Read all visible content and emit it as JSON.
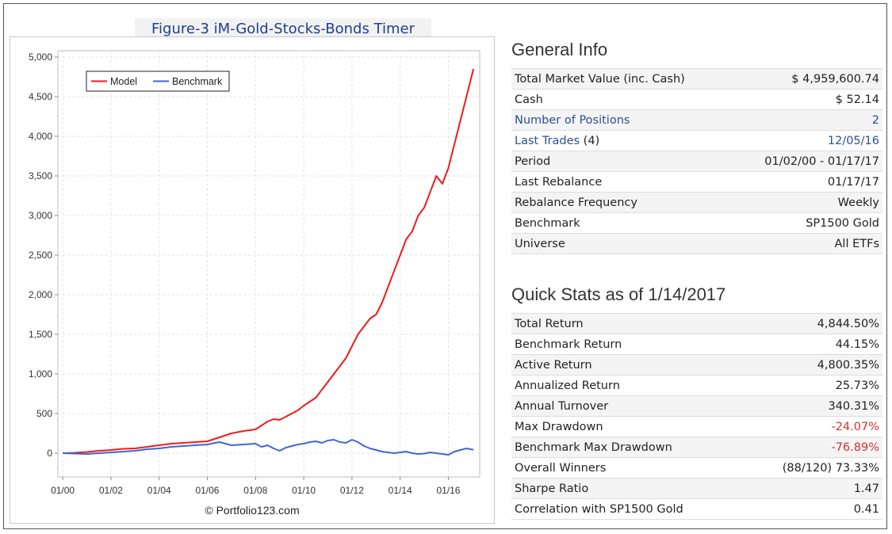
{
  "figure_title": "Figure-3 iM-Gold-Stocks-Bonds Timer",
  "credit": "© Portfolio123.com",
  "colors": {
    "model": "#ee1c1c",
    "benchmark": "#3f67d4",
    "link": "#2a4f96",
    "negative": "#d93030"
  },
  "chart_data": {
    "type": "line",
    "title": "Figure-3 iM-Gold-Stocks-Bonds Timer",
    "xlabel": "",
    "ylabel": "",
    "x_tick_labels": [
      "01/00",
      "01/02",
      "01/04",
      "01/06",
      "01/08",
      "01/10",
      "01/12",
      "01/14",
      "01/16"
    ],
    "x_tick_years": [
      2000,
      2002,
      2004,
      2006,
      2008,
      2010,
      2012,
      2014,
      2016
    ],
    "y_ticks": [
      0,
      500,
      1000,
      1500,
      2000,
      2500,
      3000,
      3500,
      4000,
      4500,
      5000
    ],
    "y_tick_labels": [
      "0",
      "500",
      "1,000",
      "1,500",
      "2,000",
      "2,500",
      "3,000",
      "3,500",
      "4,000",
      "4,500",
      "5,000"
    ],
    "xlim": [
      1999.8,
      2017.3
    ],
    "ylim": [
      -300,
      5080
    ],
    "grid": true,
    "legend_position": "top-left",
    "x": [
      2000.0,
      2000.5,
      2001.0,
      2001.5,
      2002.0,
      2002.5,
      2003.0,
      2003.5,
      2004.0,
      2004.5,
      2005.0,
      2005.5,
      2006.0,
      2006.5,
      2007.0,
      2007.5,
      2008.0,
      2008.25,
      2008.5,
      2008.75,
      2009.0,
      2009.25,
      2009.5,
      2009.75,
      2010.0,
      2010.25,
      2010.5,
      2010.75,
      2011.0,
      2011.25,
      2011.5,
      2011.75,
      2012.0,
      2012.25,
      2012.5,
      2012.75,
      2013.0,
      2013.25,
      2013.5,
      2013.75,
      2014.0,
      2014.25,
      2014.5,
      2014.75,
      2015.0,
      2015.25,
      2015.5,
      2015.75,
      2016.0,
      2016.25,
      2016.5,
      2016.75,
      2017.04
    ],
    "series": [
      {
        "name": "Model",
        "color": "#ee1c1c",
        "values": [
          0,
          5,
          15,
          30,
          40,
          55,
          60,
          80,
          100,
          120,
          130,
          140,
          150,
          200,
          250,
          280,
          300,
          350,
          400,
          430,
          420,
          460,
          500,
          540,
          600,
          650,
          700,
          800,
          900,
          1000,
          1100,
          1200,
          1350,
          1500,
          1600,
          1700,
          1750,
          1900,
          2100,
          2300,
          2500,
          2700,
          2800,
          3000,
          3100,
          3300,
          3500,
          3400,
          3600,
          3900,
          4200,
          4500,
          4850
        ]
      },
      {
        "name": "Benchmark",
        "color": "#3f67d4",
        "values": [
          0,
          -5,
          -10,
          0,
          10,
          20,
          30,
          50,
          60,
          80,
          90,
          100,
          110,
          140,
          100,
          110,
          120,
          80,
          100,
          60,
          30,
          70,
          90,
          110,
          120,
          140,
          150,
          130,
          160,
          170,
          140,
          130,
          170,
          140,
          90,
          60,
          40,
          20,
          10,
          0,
          10,
          20,
          0,
          -10,
          -5,
          10,
          0,
          -10,
          -20,
          20,
          40,
          60,
          44
        ]
      }
    ]
  },
  "general_info": {
    "heading": "General Info",
    "rows": [
      {
        "label": "Total Market Value (inc. Cash)",
        "value": "$ 4,959,600.74"
      },
      {
        "label": "Cash",
        "value": "$ 52.14"
      },
      {
        "label": "Number of Positions",
        "value": "2"
      },
      {
        "label": "Last Trades",
        "label_suffix": " (4)",
        "value": "12/05/16"
      },
      {
        "label": "Period",
        "value": "01/02/00 - 01/17/17"
      },
      {
        "label": "Last Rebalance",
        "value": "01/17/17"
      },
      {
        "label": "Rebalance Frequency",
        "value": "Weekly"
      },
      {
        "label": "Benchmark",
        "value": "SP1500 Gold"
      },
      {
        "label": "Universe",
        "value": "All ETFs"
      }
    ]
  },
  "quick_stats": {
    "heading": "Quick Stats as of 1/14/2017",
    "rows": [
      {
        "label": "Total Return",
        "value": "4,844.50%"
      },
      {
        "label": "Benchmark Return",
        "value": "44.15%"
      },
      {
        "label": "Active Return",
        "value": "4,800.35%"
      },
      {
        "label": "Annualized Return",
        "value": "25.73%"
      },
      {
        "label": "Annual Turnover",
        "value": "340.31%"
      },
      {
        "label": "Max Drawdown",
        "value": "-24.07%"
      },
      {
        "label": "Benchmark Max Drawdown",
        "value": "-76.89%"
      },
      {
        "label": "Overall Winners",
        "value": "(88/120) 73.33%"
      },
      {
        "label": "Sharpe Ratio",
        "value": "1.47"
      },
      {
        "label": "Correlation with SP1500 Gold",
        "value": "0.41"
      }
    ]
  }
}
